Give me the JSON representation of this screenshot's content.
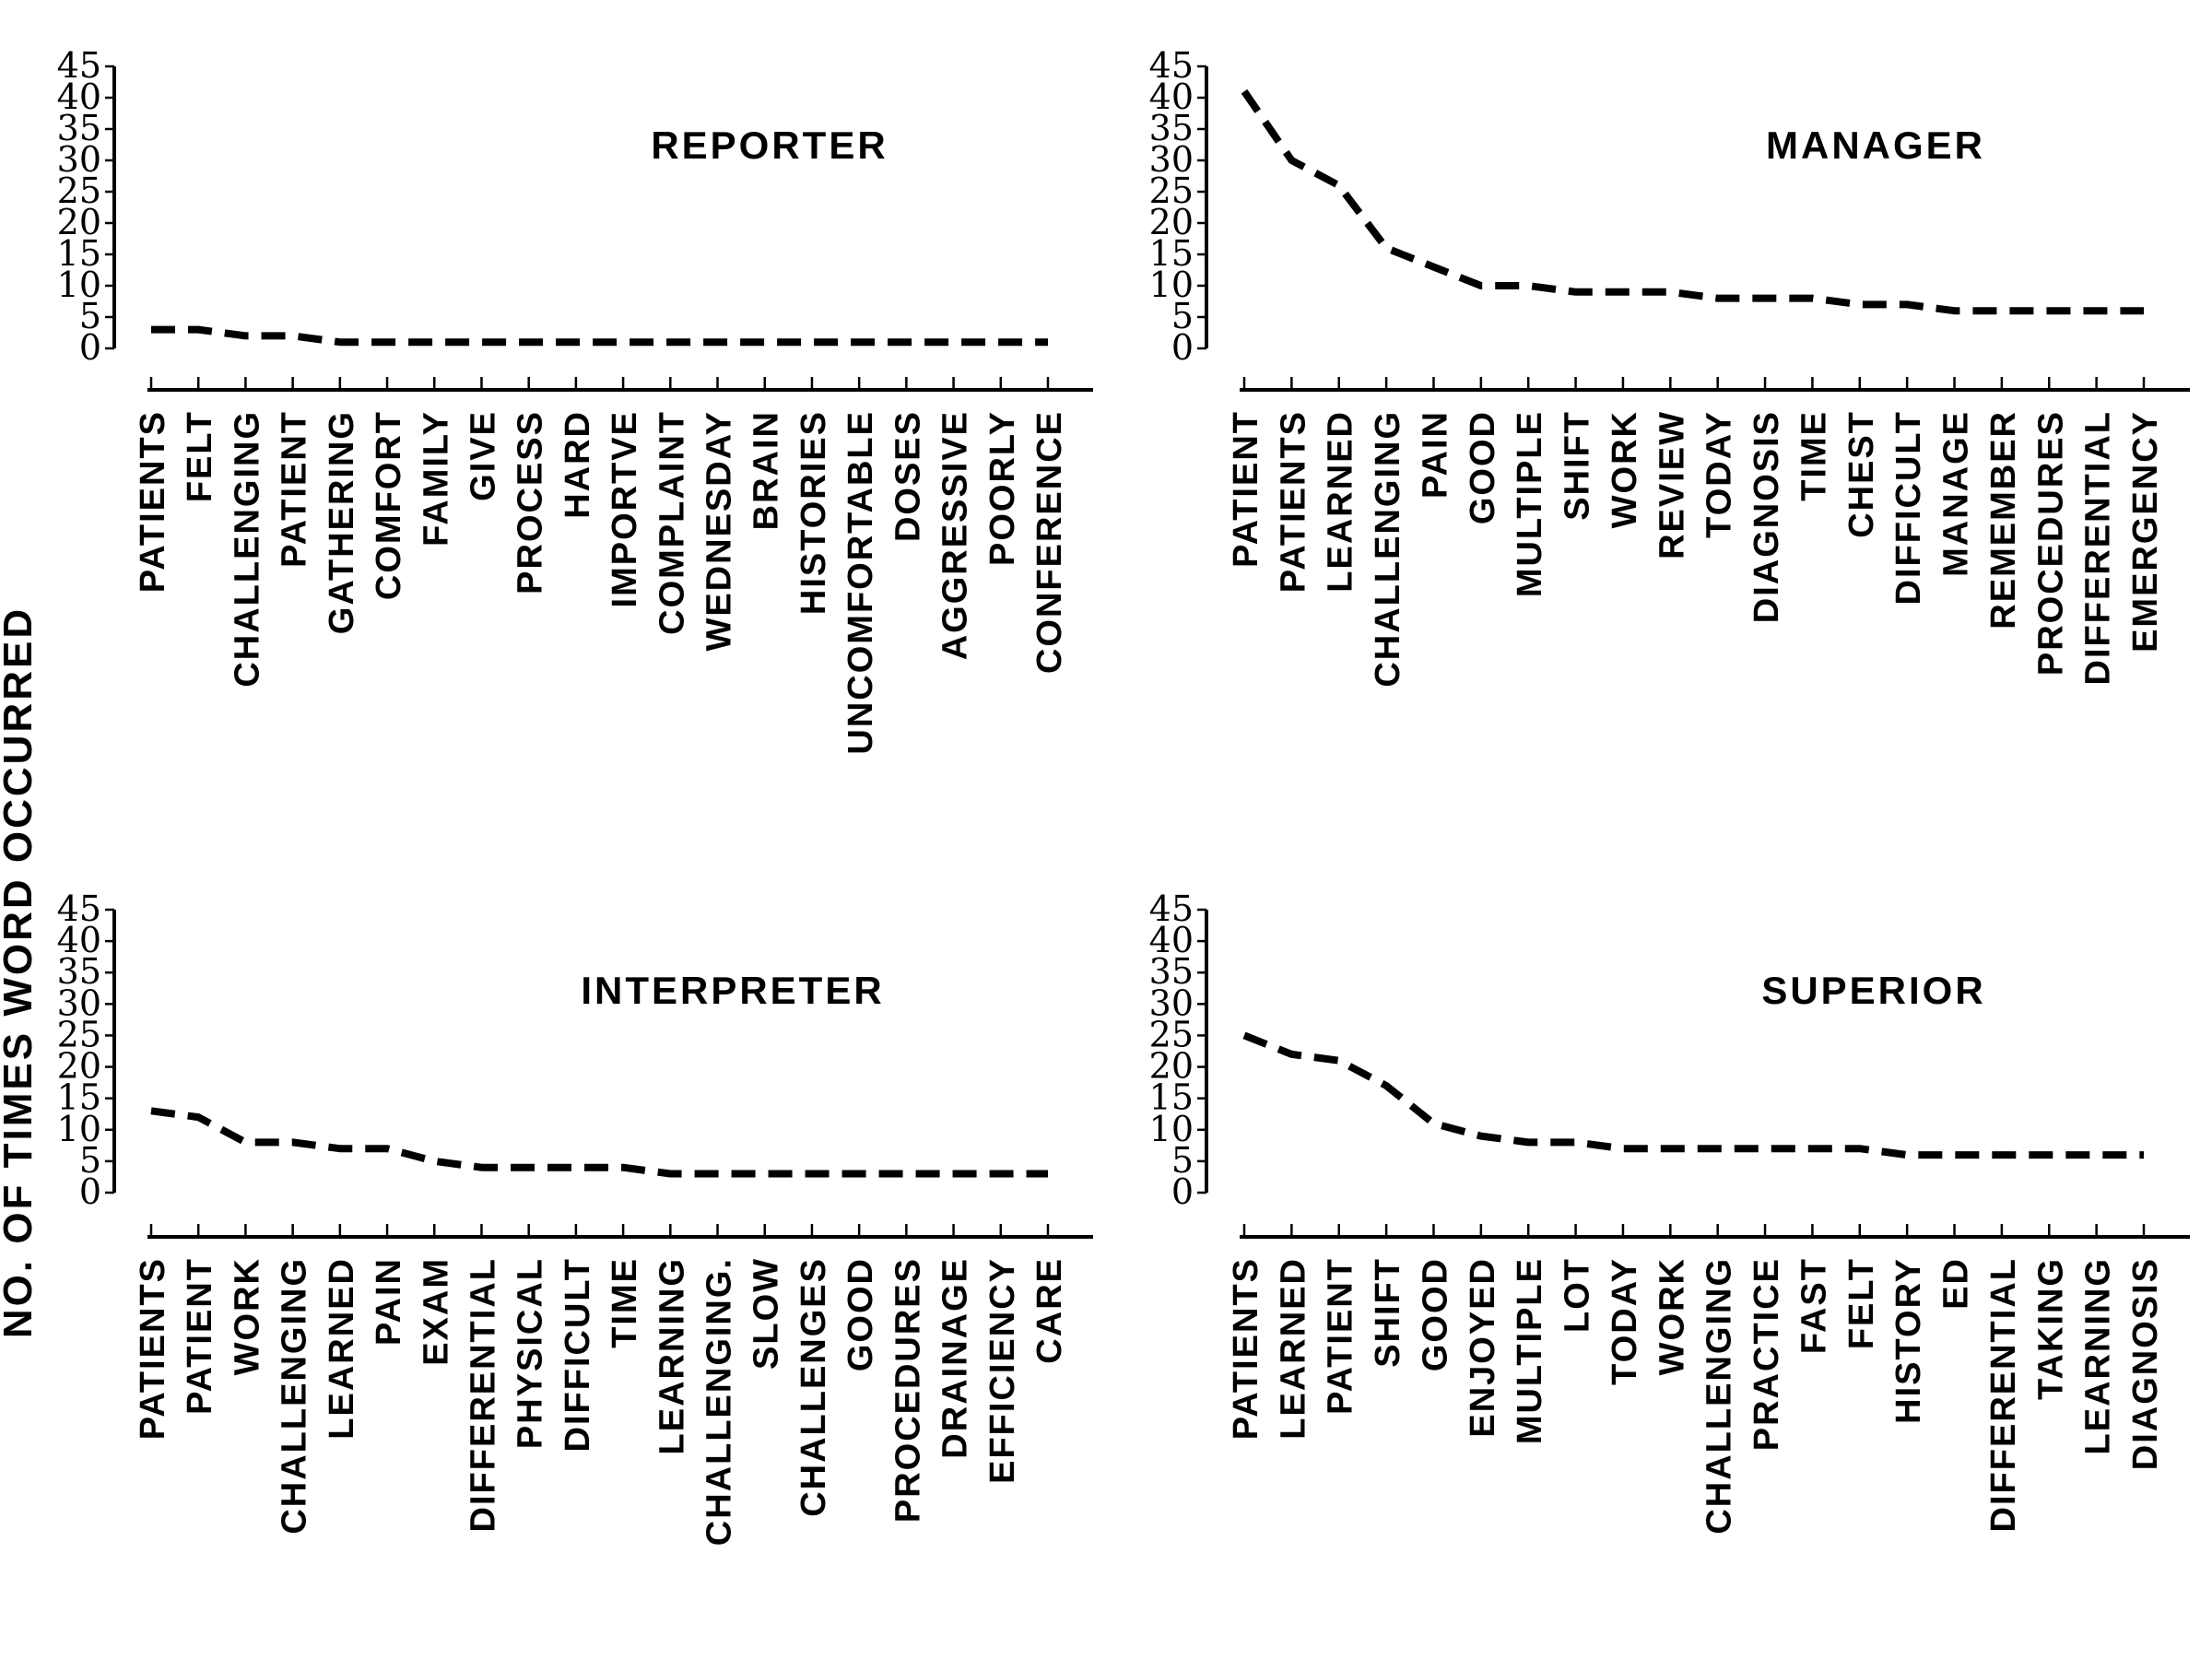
{
  "y_axis_title": "NO. OF TIMES WORD OCCURRED",
  "chart_data": [
    {
      "type": "line",
      "title": "REPORTER",
      "ylim": [
        0,
        45
      ],
      "yticks": [
        "0",
        "5",
        "10",
        "15",
        "20",
        "25",
        "30",
        "35",
        "40",
        "45"
      ],
      "categories": [
        "PATIENTS",
        "FELT",
        "CHALLENGING",
        "PATIENT",
        "GATHERING",
        "COMFORT",
        "FAMILY",
        "GIVE",
        "PROCESS",
        "HARD",
        "IMPORTVE",
        "COMPLAINT",
        "WEDNESDAY",
        "BRAIN",
        "HISTORIES",
        "UNCOMFORTABLE",
        "DOSES",
        "AGGRESSIVE",
        "POORLY",
        "CONFERENCE"
      ],
      "values": [
        3,
        3,
        2,
        2,
        1,
        1,
        1,
        1,
        1,
        1,
        1,
        1,
        1,
        1,
        1,
        1,
        1,
        1,
        1,
        1
      ],
      "line_style": "dashed",
      "grid": false
    },
    {
      "type": "line",
      "title": "MANAGER",
      "ylim": [
        0,
        45
      ],
      "yticks": [
        "0",
        "5",
        "10",
        "15",
        "20",
        "25",
        "30",
        "35",
        "40",
        "45"
      ],
      "categories": [
        "PATIENT",
        "PATIENTS",
        "LEARNED",
        "CHALLENGING",
        "PAIN",
        "GOOD",
        "MULTIPLE",
        "SHIFT",
        "WORK",
        "REVIEW",
        "TODAY",
        "DIAGNOSIS",
        "TIME",
        "CHEST",
        "DIFFICULT",
        "MANAGE",
        "REMEMBER",
        "PROCEDURES",
        "DIFFERENTIAL",
        "EMERGENCY"
      ],
      "values": [
        41,
        30,
        26,
        16,
        13,
        10,
        10,
        9,
        9,
        9,
        8,
        8,
        8,
        7,
        7,
        6,
        6,
        6,
        6,
        6
      ],
      "line_style": "dashed",
      "grid": false
    },
    {
      "type": "line",
      "title": "INTERPRETER",
      "ylim": [
        0,
        45
      ],
      "yticks": [
        "0",
        "5",
        "10",
        "15",
        "20",
        "25",
        "30",
        "35",
        "40",
        "45"
      ],
      "categories": [
        "PATIENTS",
        "PATIENT",
        "WORK",
        "CHALLENGING",
        "LEARNED",
        "PAIN",
        "EXAM",
        "DIFFERENTIAL",
        "PHYSICAL",
        "DIFFICULT",
        "TIME",
        "LEARNING",
        "CHALLENGING.",
        "SLOW",
        "CHALLENGES",
        "GOOD",
        "PROCEDURES",
        "DRAINAGE",
        "EFFICIENCY",
        "CARE"
      ],
      "values": [
        13,
        12,
        8,
        8,
        7,
        7,
        5,
        4,
        4,
        4,
        4,
        3,
        3,
        3,
        3,
        3,
        3,
        3,
        3,
        3
      ],
      "line_style": "dashed",
      "grid": false
    },
    {
      "type": "line",
      "title": "SUPERIOR",
      "ylim": [
        0,
        45
      ],
      "yticks": [
        "0",
        "5",
        "10",
        "15",
        "20",
        "25",
        "30",
        "35",
        "40",
        "45"
      ],
      "categories": [
        "PATIENTS",
        "LEARNED",
        "PATIENT",
        "SHIFT",
        "GOOD",
        "ENJOYED",
        "MULTIPLE",
        "LOT",
        "TODAY",
        "WORK",
        "CHALLENGING",
        "PRACTICE",
        "FAST",
        "FELT",
        "HISTORY",
        "ED",
        "DIFFERENTIAL",
        "TAKING",
        "LEARNING",
        "DIAGNOSIS"
      ],
      "values": [
        25,
        22,
        21,
        17,
        11,
        9,
        8,
        8,
        7,
        7,
        7,
        7,
        7,
        7,
        6,
        6,
        6,
        6,
        6,
        6
      ],
      "line_style": "dashed",
      "grid": false
    }
  ]
}
